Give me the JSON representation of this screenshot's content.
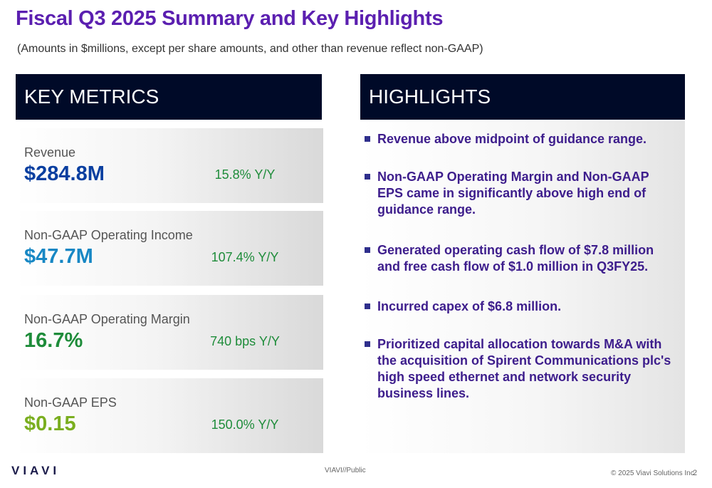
{
  "title": "Fiscal Q3 2025 Summary and Key Highlights",
  "subtitle": "(Amounts in $millions, except per share amounts, and other than revenue reflect non-GAAP)",
  "key_metrics": {
    "header": "KEY METRICS",
    "items": [
      {
        "label": "Revenue",
        "value": "$284.8M",
        "change": "15.8% Y/Y",
        "color": "#0a3fa0"
      },
      {
        "label": "Non-GAAP Operating Income",
        "value": "$47.7M",
        "change": "107.4% Y/Y",
        "color": "#1787c4"
      },
      {
        "label": "Non-GAAP Operating Margin",
        "value": "16.7%",
        "change": "740 bps Y/Y",
        "color": "#1e8c3a"
      },
      {
        "label": "Non-GAAP EPS",
        "value": "$0.15",
        "change": "150.0% Y/Y",
        "color": "#7aae1f"
      }
    ],
    "change_color": "#1e8c3a"
  },
  "highlights": {
    "header": "HIGHLIGHTS",
    "items": [
      "Revenue above midpoint of guidance range.",
      "Non-GAAP Operating Margin and Non-GAAP EPS came in significantly above high end of guidance range.",
      "Generated operating cash flow of $7.8 million and free cash flow of $1.0 million in Q3FY25.",
      "Incurred capex of $6.8 million.",
      "Prioritized capital allocation towards M&A with the acquisition of Spirent Communications plc's high speed ethernet and network security business lines."
    ]
  },
  "footer": {
    "logo": "VIAVI",
    "classification": "VIAVI//Public",
    "copyright": "© 2025 Viavi Solutions Inc.",
    "page_number": "2"
  }
}
